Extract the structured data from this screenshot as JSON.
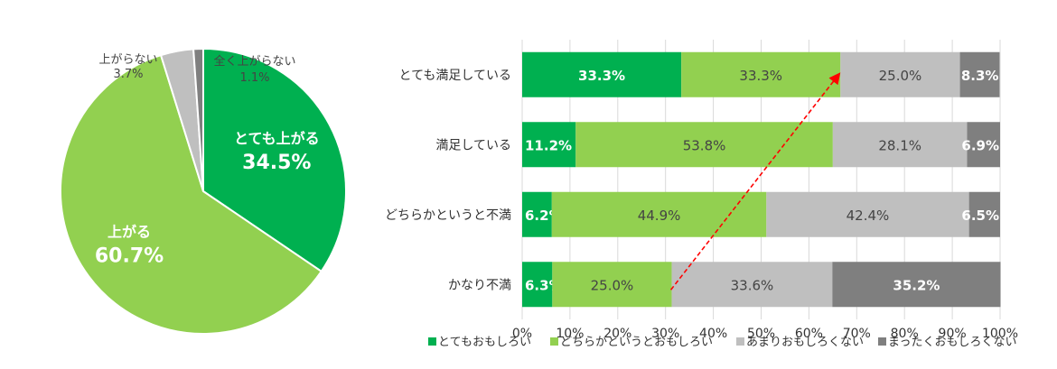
{
  "chart_data": [
    {
      "type": "pie",
      "slices": [
        {
          "label": "とても上がる",
          "value": 34.5,
          "value_label": "34.5%",
          "color": "#00b050"
        },
        {
          "label": "上がる",
          "value": 60.7,
          "value_label": "60.7%",
          "color": "#92d050"
        },
        {
          "label": "上がらない",
          "value": 3.7,
          "value_label": "3.7%",
          "color": "#bfbfbf"
        },
        {
          "label": "全く上がらない",
          "value": 1.1,
          "value_label": "1.1%",
          "color": "#7f7f7f"
        }
      ]
    },
    {
      "type": "bar",
      "orientation": "horizontal",
      "stacked": true,
      "percent_stacked": true,
      "categories": [
        "とても満足している",
        "満足している",
        "どちらかというと不満",
        "かなり不満"
      ],
      "series": [
        {
          "name": "とてもおもしろい",
          "color": "#00b050",
          "values": [
            33.3,
            11.2,
            6.2,
            6.3
          ],
          "labels": [
            "33.3%",
            "11.2%",
            "6.2%",
            "6.3%"
          ]
        },
        {
          "name": "どちらかというとおもしろい",
          "color": "#92d050",
          "values": [
            33.3,
            53.8,
            44.9,
            25.0
          ],
          "labels": [
            "33.3%",
            "53.8%",
            "44.9%",
            "25.0%"
          ]
        },
        {
          "name": "あまりおもしろくない",
          "color": "#bfbfbf",
          "values": [
            25.0,
            28.1,
            42.4,
            33.6
          ],
          "labels": [
            "25.0%",
            "28.1%",
            "42.4%",
            "33.6%"
          ]
        },
        {
          "name": "まったくおもしろくない",
          "color": "#7f7f7f",
          "values": [
            8.3,
            6.9,
            6.5,
            35.2
          ],
          "labels": [
            "8.3%",
            "6.9%",
            "6.5%",
            "35.2%"
          ]
        }
      ],
      "xlim": [
        0,
        100
      ],
      "xticks": [
        "0%",
        "10%",
        "20%",
        "30%",
        "40%",
        "50%",
        "60%",
        "70%",
        "80%",
        "90%",
        "100%"
      ],
      "grid": true,
      "legend": "bottom",
      "annotations": [
        {
          "type": "dashed-arrow",
          "color": "#ff0000",
          "from": {
            "category": "かなり不満",
            "x": 31.3
          },
          "to": {
            "category": "とても満足している",
            "x": 66.6
          }
        }
      ]
    }
  ]
}
